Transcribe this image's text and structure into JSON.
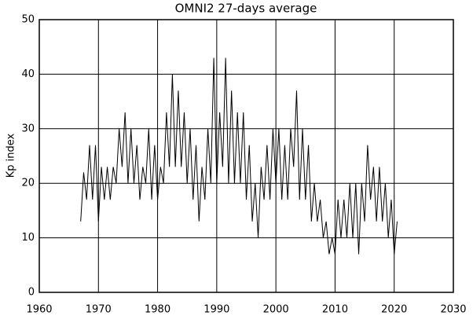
{
  "chart_data": {
    "type": "line",
    "title": "OMNI2 27-days average",
    "y_label": "Kp index",
    "x": [
      1967.0,
      1967.5,
      1968.0,
      1968.5,
      1969.0,
      1969.5,
      1970.0,
      1970.5,
      1971.0,
      1971.5,
      1972.0,
      1972.5,
      1973.0,
      1973.5,
      1974.0,
      1974.5,
      1975.0,
      1975.5,
      1976.0,
      1976.5,
      1977.0,
      1977.5,
      1978.0,
      1978.5,
      1979.0,
      1979.5,
      1980.0,
      1980.5,
      1981.0,
      1981.5,
      1982.0,
      1982.5,
      1983.0,
      1983.5,
      1984.0,
      1984.5,
      1985.0,
      1985.5,
      1986.0,
      1986.5,
      1987.0,
      1987.5,
      1988.0,
      1988.5,
      1989.0,
      1989.5,
      1990.0,
      1990.5,
      1991.0,
      1991.5,
      1992.0,
      1992.5,
      1993.0,
      1993.5,
      1994.0,
      1994.5,
      1995.0,
      1995.5,
      1996.0,
      1996.5,
      1997.0,
      1997.5,
      1998.0,
      1998.5,
      1999.0,
      1999.5,
      2000.0,
      2000.5,
      2001.0,
      2001.5,
      2002.0,
      2002.5,
      2003.0,
      2003.5,
      2004.0,
      2004.5,
      2005.0,
      2005.5,
      2006.0,
      2006.5,
      2007.0,
      2007.5,
      2008.0,
      2008.5,
      2009.0,
      2009.5,
      2010.0,
      2010.5,
      2011.0,
      2011.5,
      2012.0,
      2012.5,
      2013.0,
      2013.5,
      2014.0,
      2014.5,
      2015.0,
      2015.5,
      2016.0,
      2016.5,
      2017.0,
      2017.5,
      2018.0,
      2018.5,
      2019.0,
      2019.5,
      2020.0,
      2020.5
    ],
    "series": [
      {
        "color": "#000000",
        "values": [
          13,
          22,
          17,
          27,
          17,
          27,
          13,
          23,
          17,
          23,
          17,
          23,
          20,
          30,
          23,
          33,
          20,
          30,
          20,
          27,
          17,
          23,
          20,
          30,
          17,
          27,
          17,
          23,
          20,
          33,
          23,
          40,
          23,
          37,
          23,
          33,
          20,
          30,
          17,
          27,
          13,
          23,
          17,
          30,
          20,
          43,
          20,
          33,
          23,
          43,
          20,
          37,
          20,
          33,
          20,
          33,
          17,
          27,
          13,
          20,
          10,
          23,
          17,
          27,
          17,
          30,
          20,
          30,
          17,
          27,
          17,
          30,
          23,
          37,
          17,
          30,
          17,
          27,
          13,
          20,
          13,
          17,
          10,
          13,
          7,
          10,
          7,
          17,
          10,
          17,
          10,
          20,
          10,
          20,
          7,
          20,
          13,
          27,
          17,
          23,
          13,
          23,
          13,
          20,
          10,
          17,
          7,
          13
        ]
      }
    ],
    "xlim": [
      1960,
      2030
    ],
    "xticks": [
      1960,
      1970,
      1980,
      1990,
      2000,
      2010,
      2020,
      2030
    ],
    "ylim": [
      0,
      50
    ],
    "yticks": [
      0,
      10,
      20,
      30,
      40,
      50
    ],
    "grid": true
  }
}
